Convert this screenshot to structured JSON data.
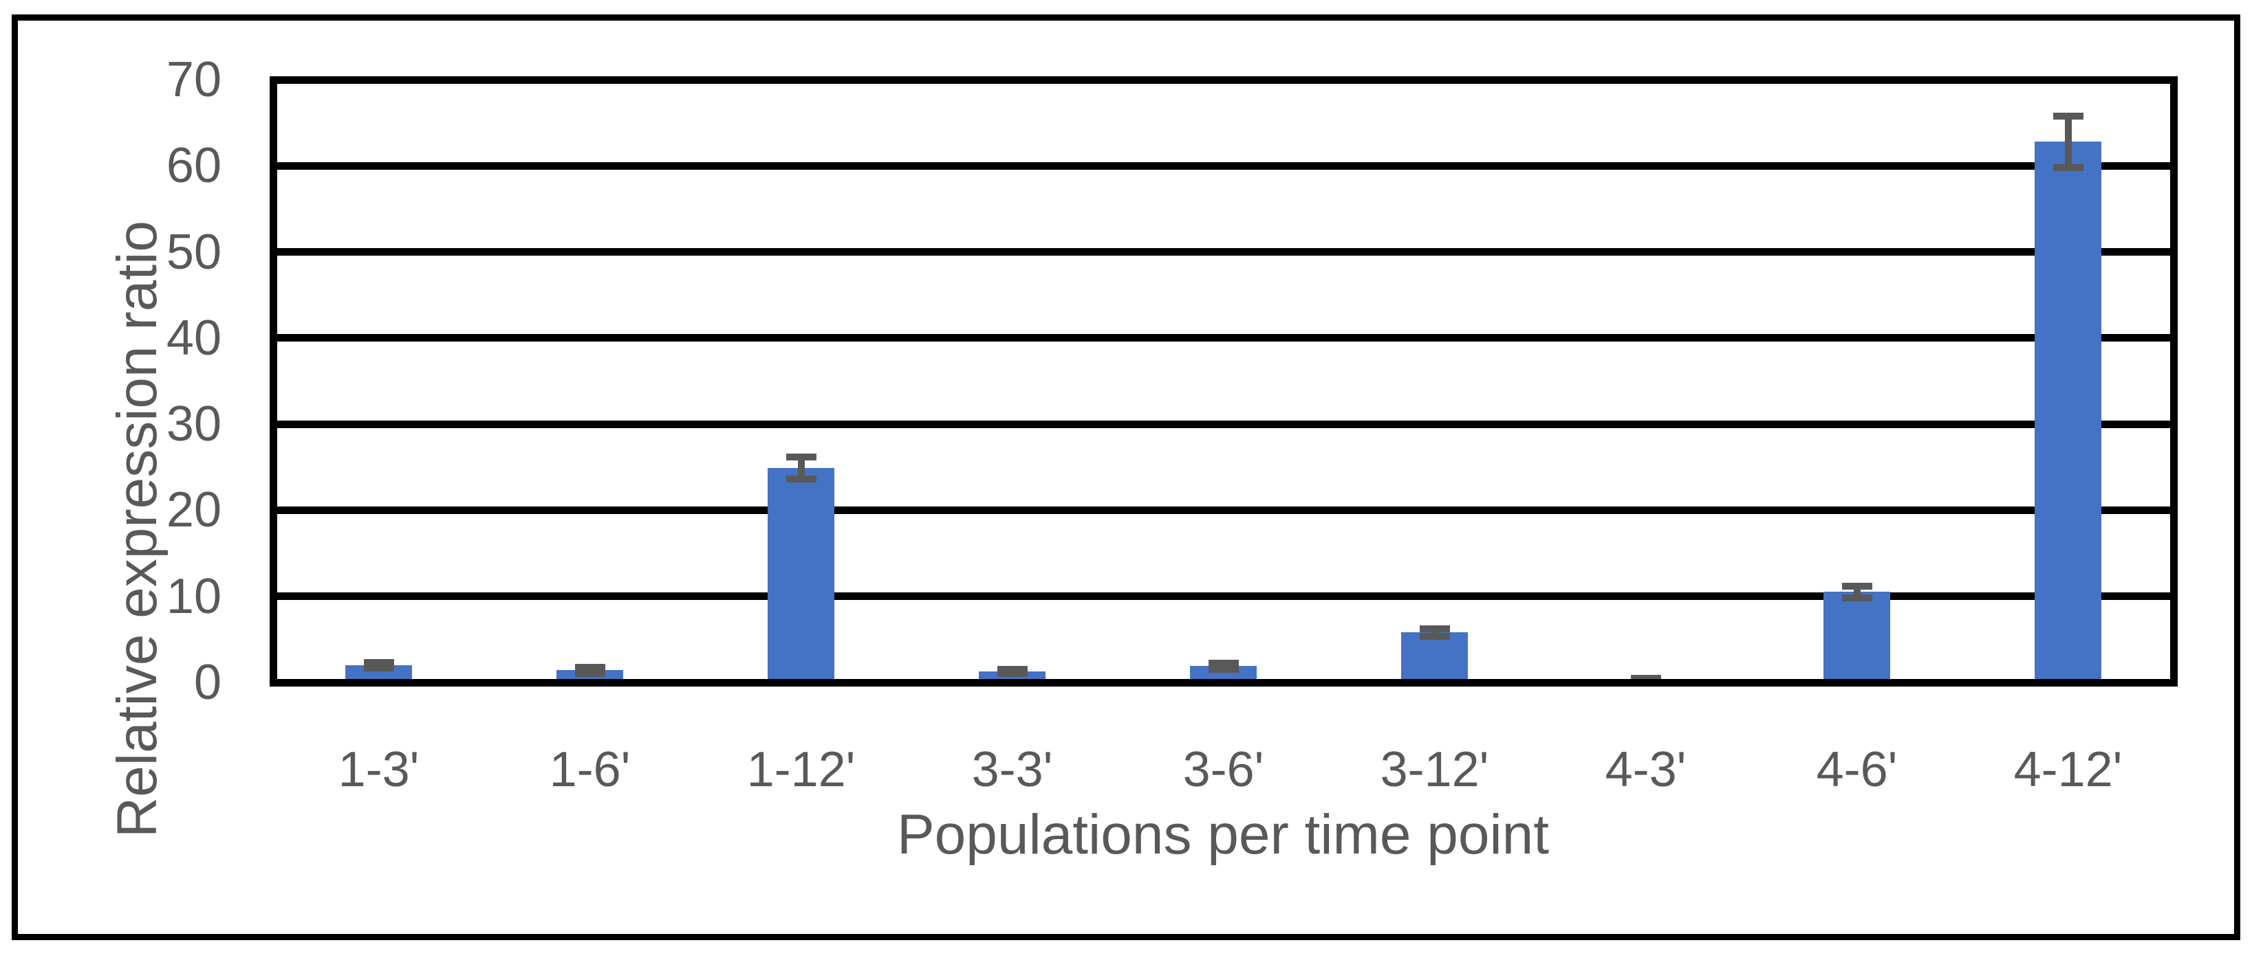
{
  "chart_data": {
    "type": "bar",
    "title": "",
    "xlabel": "Populations per time point",
    "ylabel": "Relative expression ratio",
    "categories": [
      "1-3'",
      "1-6'",
      "1-12'",
      "3-3'",
      "3-6'",
      "3-12'",
      "4-3'",
      "4-6'",
      "4-12'"
    ],
    "values": [
      2.0,
      1.4,
      24.9,
      1.3,
      1.9,
      5.8,
      0.35,
      10.5,
      62.8
    ],
    "error_bars": [
      0.3,
      0.35,
      1.3,
      0.25,
      0.35,
      0.45,
      0.15,
      0.7,
      3.0
    ],
    "ylim": [
      0,
      70
    ],
    "yticks": [
      0,
      10,
      20,
      30,
      40,
      50,
      60,
      70
    ],
    "grid": "horizontal",
    "legend": "none",
    "colors": {
      "bar": "#4472C4",
      "error_bar": "#595959",
      "axis_line": "#000000",
      "text": "#595959",
      "background": "#FFFFFF",
      "frame_border": "#000000"
    }
  }
}
